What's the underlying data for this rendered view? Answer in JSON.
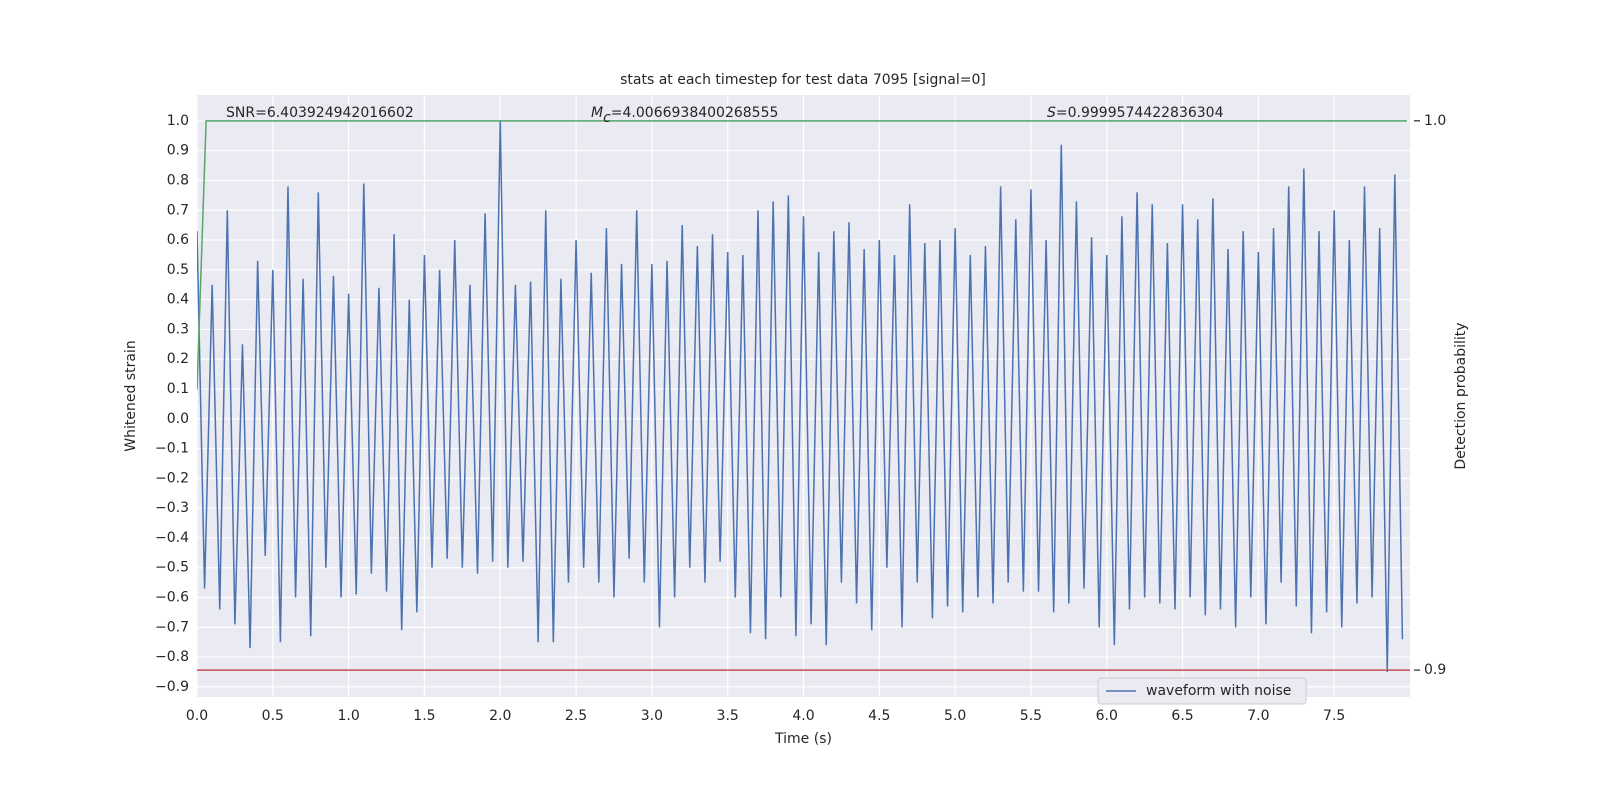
{
  "chart_data": {
    "type": "line",
    "title": "stats at each timestep for test data 7095 [signal=0]",
    "xlabel": "Time (s)",
    "ylabel": "Whitened strain",
    "y2label": "Detection probability",
    "annotations": [
      {
        "text": "SNR=6.403924942016602"
      },
      {
        "symbol": "M",
        "subscript": "c",
        "text": "=4.0066938400268555"
      },
      {
        "symbol": "S",
        "text": "=0.9999574422836304"
      }
    ],
    "xlim": [
      0,
      8
    ],
    "ylim": [
      -0.934,
      1.087
    ],
    "y2lim": [
      0.8951,
      1.0047
    ],
    "grid": true,
    "legend": "lower right",
    "xticks": [
      {
        "value": 0,
        "label": "0.0"
      },
      {
        "value": 0.5,
        "label": "0.5"
      },
      {
        "value": 1,
        "label": "1.0"
      },
      {
        "value": 1.5,
        "label": "1.5"
      },
      {
        "value": 2,
        "label": "2.0"
      },
      {
        "value": 2.5,
        "label": "2.5"
      },
      {
        "value": 3,
        "label": "3.0"
      },
      {
        "value": 3.5,
        "label": "3.5"
      },
      {
        "value": 4,
        "label": "4.0"
      },
      {
        "value": 4.5,
        "label": "4.5"
      },
      {
        "value": 5,
        "label": "5.0"
      },
      {
        "value": 5.5,
        "label": "5.5"
      },
      {
        "value": 6,
        "label": "6.0"
      },
      {
        "value": 6.5,
        "label": "6.5"
      },
      {
        "value": 7,
        "label": "7.0"
      },
      {
        "value": 7.5,
        "label": "7.5"
      }
    ],
    "yticks": [
      {
        "value": -0.9,
        "label": "−0.9"
      },
      {
        "value": -0.8,
        "label": "−0.8"
      },
      {
        "value": -0.7,
        "label": "−0.7"
      },
      {
        "value": -0.6,
        "label": "−0.6"
      },
      {
        "value": -0.5,
        "label": "−0.5"
      },
      {
        "value": -0.4,
        "label": "−0.4"
      },
      {
        "value": -0.3,
        "label": "−0.3"
      },
      {
        "value": -0.2,
        "label": "−0.2"
      },
      {
        "value": -0.1,
        "label": "−0.1"
      },
      {
        "value": 0,
        "label": "0.0"
      },
      {
        "value": 0.1,
        "label": "0.1"
      },
      {
        "value": 0.2,
        "label": "0.2"
      },
      {
        "value": 0.3,
        "label": "0.3"
      },
      {
        "value": 0.4,
        "label": "0.4"
      },
      {
        "value": 0.5,
        "label": "0.5"
      },
      {
        "value": 0.6,
        "label": "0.6"
      },
      {
        "value": 0.7,
        "label": "0.7"
      },
      {
        "value": 0.8,
        "label": "0.8"
      },
      {
        "value": 0.9,
        "label": "0.9"
      },
      {
        "value": 1,
        "label": "1.0"
      }
    ],
    "y2ticks": [
      {
        "value": 0.9,
        "label": "0.9"
      },
      {
        "value": 1,
        "label": "1.0"
      }
    ],
    "series": [
      {
        "name": "waveform with noise",
        "color": "#4c72b0",
        "x": [
          0,
          0.05,
          0.1,
          0.15,
          0.2,
          0.25,
          0.3,
          0.35,
          0.4,
          0.45,
          0.5,
          0.55,
          0.6,
          0.65,
          0.7,
          0.75,
          0.8,
          0.85,
          0.9,
          0.95,
          1,
          1.05,
          1.1,
          1.15,
          1.2,
          1.25,
          1.3,
          1.35,
          1.4,
          1.45,
          1.5,
          1.55,
          1.6,
          1.65,
          1.7,
          1.75,
          1.8,
          1.85,
          1.9,
          1.95,
          2,
          2.05,
          2.1,
          2.15,
          2.2,
          2.25,
          2.3,
          2.35,
          2.4,
          2.45,
          2.5,
          2.55,
          2.6,
          2.65,
          2.7,
          2.75,
          2.8,
          2.85,
          2.9,
          2.95,
          3,
          3.05,
          3.1,
          3.15,
          3.2,
          3.25,
          3.3,
          3.35,
          3.4,
          3.45,
          3.5,
          3.55,
          3.6,
          3.65,
          3.7,
          3.75,
          3.8,
          3.85,
          3.9,
          3.95,
          4,
          4.05,
          4.1,
          4.15,
          4.2,
          4.25,
          4.3,
          4.35,
          4.4,
          4.45,
          4.5,
          4.55,
          4.6,
          4.65,
          4.7,
          4.75,
          4.8,
          4.85,
          4.9,
          4.95,
          5,
          5.05,
          5.1,
          5.15,
          5.2,
          5.25,
          5.3,
          5.35,
          5.4,
          5.45,
          5.5,
          5.55,
          5.6,
          5.65,
          5.7,
          5.75,
          5.8,
          5.85,
          5.9,
          5.95,
          6,
          6.05,
          6.1,
          6.15,
          6.2,
          6.25,
          6.3,
          6.35,
          6.4,
          6.45,
          6.5,
          6.55,
          6.6,
          6.65,
          6.7,
          6.75,
          6.8,
          6.85,
          6.9,
          6.95,
          7,
          7.05,
          7.1,
          7.15,
          7.2,
          7.25,
          7.3,
          7.35,
          7.4,
          7.45,
          7.5,
          7.55,
          7.6,
          7.65,
          7.7,
          7.75,
          7.8,
          7.85,
          7.9,
          7.95
        ],
        "values": [
          0.63,
          -0.57,
          0.45,
          -0.64,
          0.7,
          -0.69,
          0.25,
          -0.77,
          0.53,
          -0.46,
          0.5,
          -0.75,
          0.78,
          -0.6,
          0.47,
          -0.73,
          0.76,
          -0.5,
          0.48,
          -0.6,
          0.42,
          -0.59,
          0.79,
          -0.52,
          0.44,
          -0.58,
          0.62,
          -0.71,
          0.4,
          -0.65,
          0.55,
          -0.5,
          0.5,
          -0.47,
          0.6,
          -0.5,
          0.45,
          -0.52,
          0.69,
          -0.48,
          1.0,
          -0.5,
          0.45,
          -0.48,
          0.46,
          -0.75,
          0.7,
          -0.75,
          0.47,
          -0.55,
          0.6,
          -0.5,
          0.49,
          -0.55,
          0.64,
          -0.6,
          0.52,
          -0.47,
          0.7,
          -0.55,
          0.52,
          -0.7,
          0.53,
          -0.6,
          0.65,
          -0.5,
          0.58,
          -0.55,
          0.62,
          -0.48,
          0.56,
          -0.6,
          0.55,
          -0.72,
          0.7,
          -0.74,
          0.73,
          -0.6,
          0.75,
          -0.73,
          0.68,
          -0.69,
          0.56,
          -0.76,
          0.63,
          -0.55,
          0.66,
          -0.62,
          0.57,
          -0.71,
          0.6,
          -0.5,
          0.55,
          -0.7,
          0.72,
          -0.55,
          0.59,
          -0.67,
          0.6,
          -0.63,
          0.64,
          -0.65,
          0.55,
          -0.6,
          0.58,
          -0.62,
          0.78,
          -0.55,
          0.67,
          -0.58,
          0.77,
          -0.58,
          0.6,
          -0.65,
          0.92,
          -0.62,
          0.73,
          -0.57,
          0.61,
          -0.7,
          0.55,
          -0.76,
          0.68,
          -0.64,
          0.76,
          -0.6,
          0.72,
          -0.62,
          0.59,
          -0.64,
          0.72,
          -0.6,
          0.67,
          -0.66,
          0.74,
          -0.64,
          0.57,
          -0.7,
          0.63,
          -0.6,
          0.56,
          -0.69,
          0.64,
          -0.55,
          0.78,
          -0.63,
          0.84,
          -0.72,
          0.63,
          -0.65,
          0.7,
          -0.7,
          0.6,
          -0.62,
          0.78,
          -0.6,
          0.64,
          -0.85,
          0.82,
          -0.74
        ]
      },
      {
        "color": "#55a868",
        "axis": "y2",
        "x": [
          0,
          0.06,
          0.1,
          7.98
        ],
        "values": [
          0.951,
          1.0,
          1.0,
          1.0
        ]
      }
    ],
    "threshold": {
      "value": 0.9,
      "color": "#c44e52",
      "axis": "y2"
    }
  }
}
